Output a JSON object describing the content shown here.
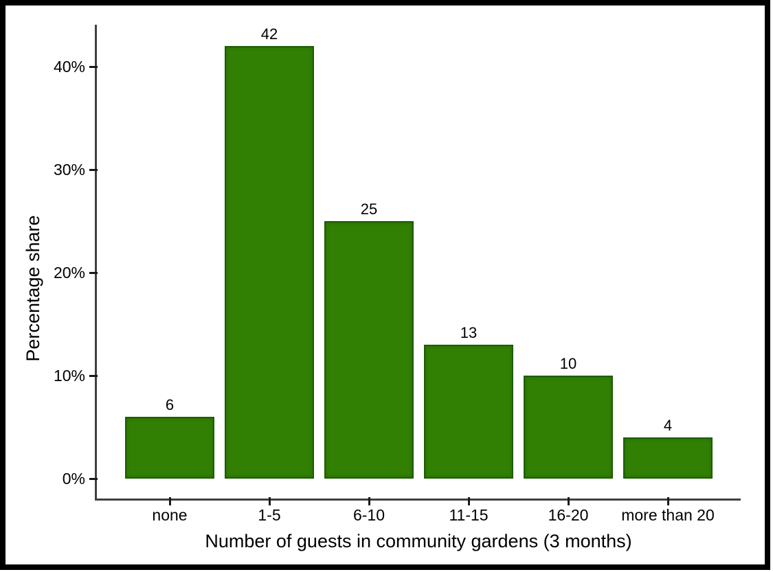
{
  "chart_data": {
    "type": "bar",
    "title": "",
    "categories": [
      "none",
      "1-5",
      "6-10",
      "11-15",
      "16-20",
      "more than 20"
    ],
    "values": [
      6,
      42,
      25,
      13,
      10,
      4
    ],
    "value_labels": [
      "6",
      "42",
      "25",
      "13",
      "10",
      "4"
    ],
    "xlabel": "Number of guests in community gardens (3 months)",
    "ylabel": "Percentage share",
    "ylim": [
      0,
      46
    ],
    "y_ticks": [
      {
        "value": 0,
        "label": "0%"
      },
      {
        "value": 10,
        "label": "10%"
      },
      {
        "value": 20,
        "label": "20%"
      },
      {
        "value": 30,
        "label": "30%"
      },
      {
        "value": 40,
        "label": "40%"
      }
    ],
    "grid": false,
    "legend": false,
    "colors": {
      "bar_fill": "#328003",
      "bar_border": "#1e5c03",
      "axis_line": "#404040",
      "tick_mark": "#1a1a1a",
      "text": "#000000",
      "background": "#ffffff",
      "outer_border": "#000000"
    }
  }
}
